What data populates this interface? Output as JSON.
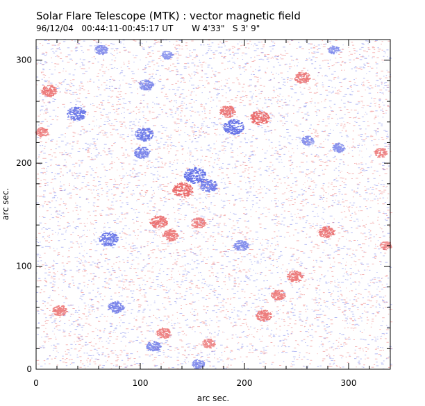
{
  "figure": {
    "title": "Solar Flare Telescope (MTK) : vector magnetic field",
    "subtitle": "96/12/04   00:44:11-00:45:17 UT       W 4'33\"   S 3' 9\""
  },
  "axes": {
    "xlabel": "arc sec.",
    "ylabel": "arc sec.",
    "xlim": [
      0,
      340
    ],
    "ylim": [
      0,
      320
    ],
    "x_ticks": [
      0,
      100,
      200,
      300
    ],
    "y_ticks": [
      0,
      100,
      200,
      300
    ]
  },
  "colors": {
    "positive": "#e85a5a",
    "negative": "#5a68e6",
    "axis": "#000000"
  },
  "polarity_patches": [
    {
      "polarity": "negative",
      "x": 152,
      "y": 188,
      "strength": 1.0
    },
    {
      "polarity": "negative",
      "x": 165,
      "y": 178,
      "strength": 0.7
    },
    {
      "polarity": "negative",
      "x": 38,
      "y": 248,
      "strength": 0.8
    },
    {
      "polarity": "negative",
      "x": 103,
      "y": 228,
      "strength": 0.8
    },
    {
      "polarity": "negative",
      "x": 101,
      "y": 210,
      "strength": 0.6
    },
    {
      "polarity": "negative",
      "x": 189,
      "y": 235,
      "strength": 0.9
    },
    {
      "polarity": "negative",
      "x": 69,
      "y": 126,
      "strength": 0.8
    },
    {
      "polarity": "negative",
      "x": 196,
      "y": 120,
      "strength": 0.5
    },
    {
      "polarity": "negative",
      "x": 105,
      "y": 276,
      "strength": 0.5
    },
    {
      "polarity": "negative",
      "x": 76,
      "y": 60,
      "strength": 0.6
    },
    {
      "polarity": "negative",
      "x": 112,
      "y": 22,
      "strength": 0.5
    },
    {
      "polarity": "negative",
      "x": 260,
      "y": 222,
      "strength": 0.4
    },
    {
      "polarity": "negative",
      "x": 290,
      "y": 215,
      "strength": 0.4
    },
    {
      "polarity": "negative",
      "x": 62,
      "y": 310,
      "strength": 0.4
    },
    {
      "polarity": "negative",
      "x": 125,
      "y": 305,
      "strength": 0.3
    },
    {
      "polarity": "negative",
      "x": 155,
      "y": 5,
      "strength": 0.4
    },
    {
      "polarity": "negative",
      "x": 285,
      "y": 310,
      "strength": 0.3
    },
    {
      "polarity": "positive",
      "x": 140,
      "y": 174,
      "strength": 0.9
    },
    {
      "polarity": "positive",
      "x": 214,
      "y": 244,
      "strength": 0.8
    },
    {
      "polarity": "positive",
      "x": 183,
      "y": 250,
      "strength": 0.6
    },
    {
      "polarity": "positive",
      "x": 117,
      "y": 143,
      "strength": 0.7
    },
    {
      "polarity": "positive",
      "x": 128,
      "y": 130,
      "strength": 0.6
    },
    {
      "polarity": "positive",
      "x": 155,
      "y": 142,
      "strength": 0.5
    },
    {
      "polarity": "positive",
      "x": 12,
      "y": 270,
      "strength": 0.6
    },
    {
      "polarity": "positive",
      "x": 255,
      "y": 283,
      "strength": 0.6
    },
    {
      "polarity": "positive",
      "x": 278,
      "y": 133,
      "strength": 0.6
    },
    {
      "polarity": "positive",
      "x": 248,
      "y": 90,
      "strength": 0.6
    },
    {
      "polarity": "positive",
      "x": 232,
      "y": 72,
      "strength": 0.5
    },
    {
      "polarity": "positive",
      "x": 218,
      "y": 52,
      "strength": 0.6
    },
    {
      "polarity": "positive",
      "x": 22,
      "y": 57,
      "strength": 0.5
    },
    {
      "polarity": "positive",
      "x": 122,
      "y": 35,
      "strength": 0.5
    },
    {
      "polarity": "positive",
      "x": 165,
      "y": 25,
      "strength": 0.4
    },
    {
      "polarity": "positive",
      "x": 5,
      "y": 230,
      "strength": 0.4
    },
    {
      "polarity": "positive",
      "x": 330,
      "y": 210,
      "strength": 0.4
    },
    {
      "polarity": "positive",
      "x": 335,
      "y": 120,
      "strength": 0.3
    }
  ]
}
